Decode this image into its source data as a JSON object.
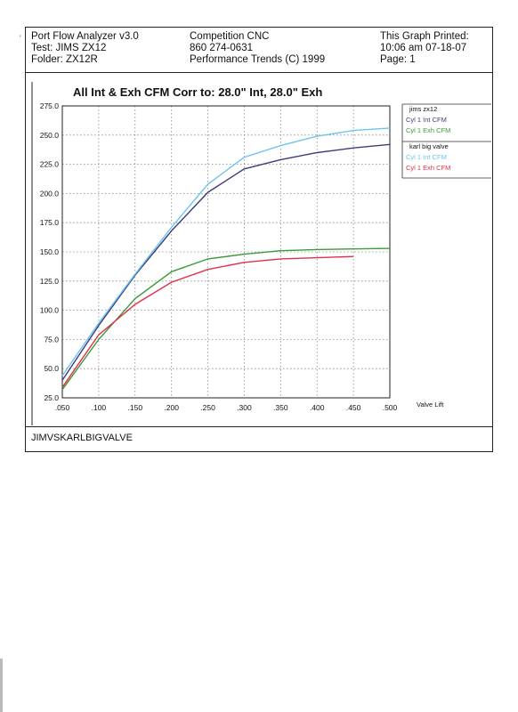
{
  "header": {
    "left": [
      "Port Flow Analyzer v3.0",
      "Test: JIMS ZX12",
      "Folder: ZX12R"
    ],
    "center": [
      "Competition CNC",
      "860 274-0631",
      "Performance Trends (C) 1999"
    ],
    "right": [
      "This Graph Printed:",
      "10:06 am 07-18-07",
      "Page: 1"
    ]
  },
  "footer": "JIMVSKARLBIGVALVE",
  "scan_mark": "'",
  "chart_data": {
    "type": "line",
    "title": "All Int & Exh CFM   Corr to: 28.0\" Int, 28.0\" Exh",
    "xlabel": "Valve Lift",
    "ylabel": "",
    "x": [
      0.05,
      0.1,
      0.15,
      0.2,
      0.25,
      0.3,
      0.35,
      0.4,
      0.45,
      0.5
    ],
    "x_ticks": [
      ".050",
      ".100",
      ".150",
      ".200",
      ".250",
      ".300",
      ".350",
      ".400",
      ".450",
      ".500"
    ],
    "y_ticks": [
      "25.0",
      "50.0",
      "75.0",
      "100.0",
      "125.0",
      "150.0",
      "175.0",
      "200.0",
      "225.0",
      "250.0",
      "275.0"
    ],
    "xlim": [
      0.05,
      0.5
    ],
    "ylim": [
      25,
      275
    ],
    "grid": true,
    "legend_position": "right",
    "legend_groups": [
      {
        "title": "jims zx12",
        "entries": [
          "Cyl 1 Int CFM",
          "Cyl 1 Exh CFM"
        ]
      },
      {
        "title": "karl big valve",
        "entries": [
          "Cyl 1 Int CFM",
          "Cyl 1 Exh CFM"
        ]
      }
    ],
    "series": [
      {
        "name": "jims zx12 Cyl 1 Int CFM",
        "color": "#3d3d7a",
        "x": [
          0.05,
          0.1,
          0.15,
          0.2,
          0.25,
          0.3,
          0.35,
          0.4,
          0.45,
          0.5
        ],
        "values": [
          40,
          87,
          130,
          168,
          201,
          221,
          229,
          235,
          239,
          242
        ]
      },
      {
        "name": "jims zx12 Cyl 1 Exh CFM",
        "color": "#3a9a3a",
        "x": [
          0.05,
          0.1,
          0.15,
          0.2,
          0.25,
          0.3,
          0.35,
          0.4,
          0.45,
          0.5
        ],
        "values": [
          32,
          75,
          110,
          133,
          144,
          148,
          151,
          152,
          152.5,
          153
        ]
      },
      {
        "name": "karl big valve Cyl 1 Int CFM",
        "color": "#6fc3f0",
        "x": [
          0.05,
          0.1,
          0.15,
          0.2,
          0.25,
          0.3,
          0.35,
          0.4,
          0.45,
          0.5
        ],
        "values": [
          44,
          89,
          131,
          171,
          208,
          231,
          241,
          249,
          254,
          256
        ]
      },
      {
        "name": "karl big valve Cyl 1 Exh CFM",
        "color": "#e0304a",
        "x": [
          0.05,
          0.1,
          0.15,
          0.2,
          0.25,
          0.3,
          0.35,
          0.4,
          0.45
        ],
        "values": [
          34,
          79,
          105,
          124,
          135,
          141,
          144,
          145,
          146
        ]
      }
    ]
  }
}
